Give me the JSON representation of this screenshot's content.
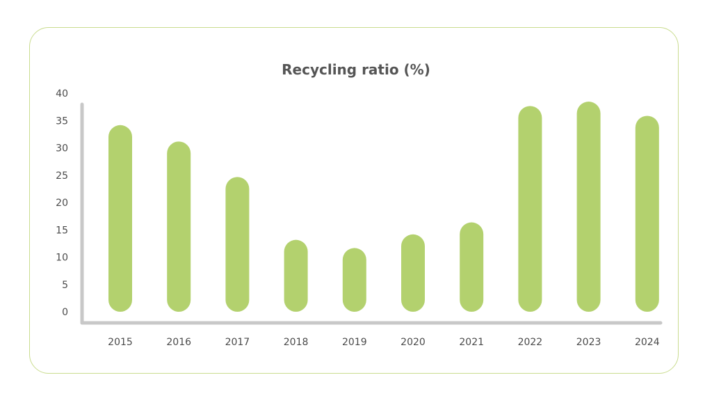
{
  "chart_data": {
    "type": "bar",
    "title": "Recycling ratio (%)",
    "xlabel": "",
    "ylabel": "",
    "categories": [
      "2015",
      "2016",
      "2017",
      "2018",
      "2019",
      "2020",
      "2021",
      "2022",
      "2023",
      "2024"
    ],
    "values": [
      32,
      29,
      22.5,
      11,
      9.5,
      12,
      14.2,
      35.5,
      36.3,
      33.7
    ],
    "ylim": [
      0,
      40
    ],
    "yticks": [
      "0",
      "5",
      "10",
      "15",
      "20",
      "25",
      "30",
      "35",
      "40"
    ],
    "grid": false,
    "legend": "none",
    "colors": {
      "bar": "#b3d16e",
      "axis": "#c8c8c8",
      "border": "#c9dc8e"
    }
  }
}
